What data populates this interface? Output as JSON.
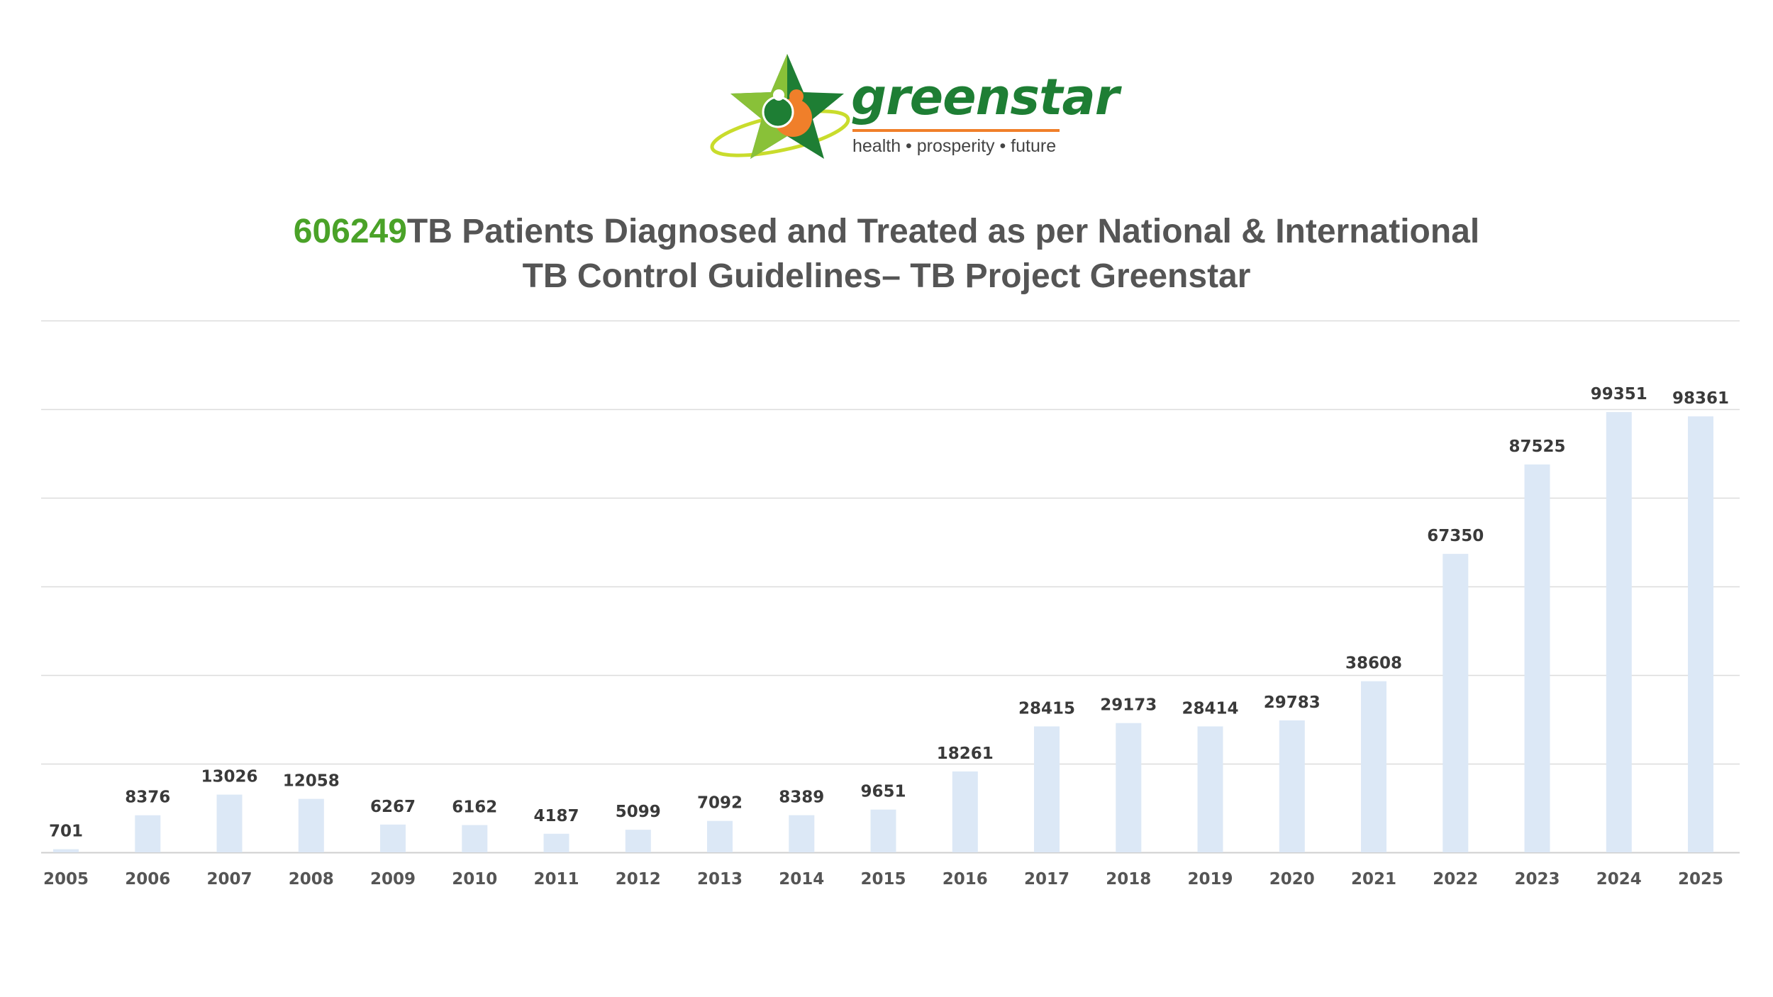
{
  "logo": {
    "brand_name": "greenstar",
    "tagline": "health • prosperity • future",
    "colors": {
      "green": "#1e7e34",
      "light_green": "#9ccc3a",
      "orange": "#f07f2a"
    }
  },
  "chart_data": {
    "type": "bar",
    "title_highlight": "606249",
    "title_line1": "TB Patients Diagnosed and Treated as per National & International",
    "title_line2": "TB Control Guidelines– TB Project Greenstar",
    "xlabel": "",
    "ylabel": "",
    "ylim": [
      0,
      120000
    ],
    "grid": true,
    "categories": [
      "2005",
      "2006",
      "2007",
      "2008",
      "2009",
      "2010",
      "2011",
      "2012",
      "2013",
      "2014",
      "2015",
      "2016",
      "2017",
      "2018",
      "2019",
      "2020",
      "2021",
      "2022",
      "2023",
      "2024",
      "2025"
    ],
    "values": [
      701,
      8376,
      13026,
      12058,
      6267,
      6162,
      4187,
      5099,
      7092,
      8389,
      9651,
      18261,
      28415,
      29173,
      28414,
      29783,
      38608,
      67350,
      87525,
      99351,
      98361
    ],
    "bar_color": "#dce8f6",
    "accent_color": "#4aa228"
  }
}
